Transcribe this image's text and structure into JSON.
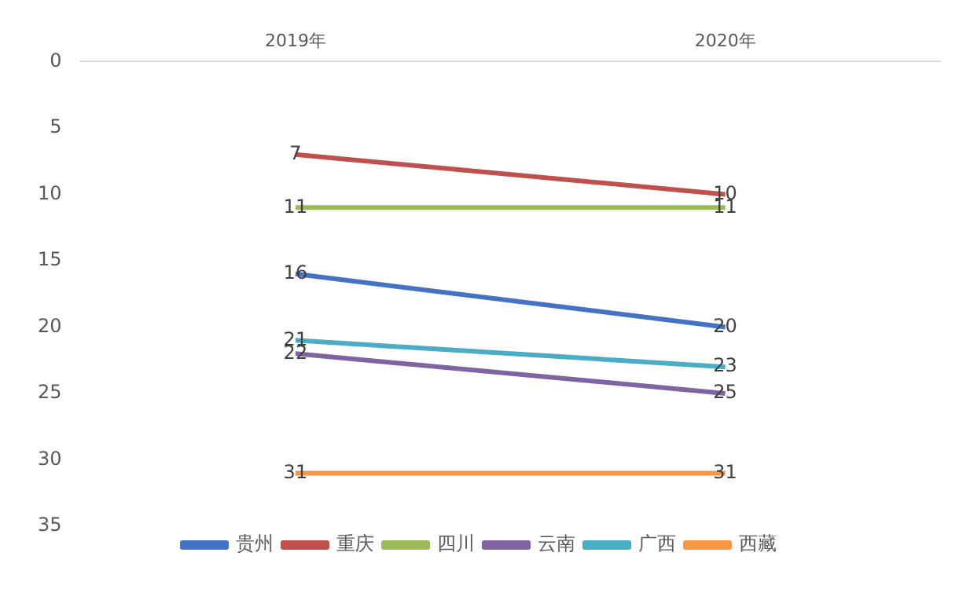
{
  "chart_data": {
    "type": "line",
    "categories": [
      "2019年",
      "2020年"
    ],
    "series": [
      {
        "name": "贵州",
        "color": "#4472c4",
        "values": [
          16,
          20
        ]
      },
      {
        "name": "重庆",
        "color": "#c0504d",
        "values": [
          7,
          10
        ]
      },
      {
        "name": "四川",
        "color": "#9bbb59",
        "values": [
          11,
          11
        ]
      },
      {
        "name": "云南",
        "color": "#8064a2",
        "values": [
          22,
          25
        ]
      },
      {
        "name": "广西",
        "color": "#4bacc6",
        "values": [
          21,
          23
        ]
      },
      {
        "name": "西藏",
        "color": "#f79646",
        "values": [
          31,
          31
        ]
      }
    ],
    "ylim": [
      35,
      0
    ],
    "yticks": [
      0,
      5,
      10,
      15,
      20,
      25,
      30,
      35
    ],
    "data_labels": true,
    "legend": "bottom",
    "marker": "none"
  }
}
